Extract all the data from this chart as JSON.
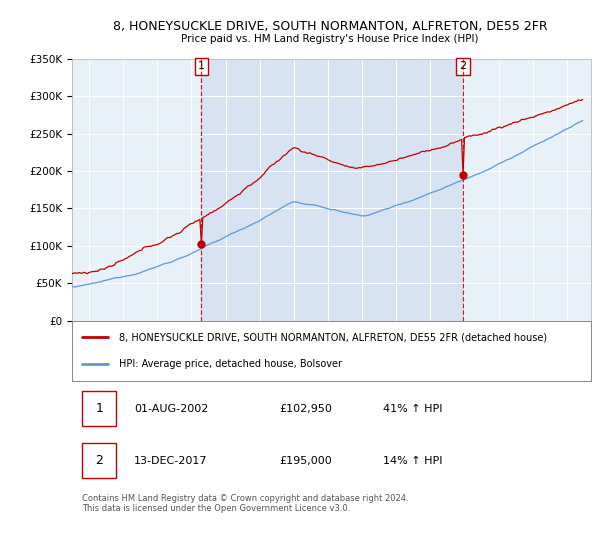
{
  "title": "8, HONEYSUCKLE DRIVE, SOUTH NORMANTON, ALFRETON, DE55 2FR",
  "subtitle": "Price paid vs. HM Land Registry's House Price Index (HPI)",
  "legend_line1": "8, HONEYSUCKLE DRIVE, SOUTH NORMANTON, ALFRETON, DE55 2FR (detached house)",
  "legend_line2": "HPI: Average price, detached house, Bolsover",
  "footnote": "Contains HM Land Registry data © Crown copyright and database right 2024.\nThis data is licensed under the Open Government Licence v3.0.",
  "purchase1_price": 102950,
  "purchase2_price": 195000,
  "hpi_color": "#5b9bd5",
  "price_color": "#c00000",
  "vline_color": "#c00000",
  "shade_color": "#ddeeff",
  "ylim_min": 0,
  "ylim_max": 350000,
  "background_color": "#ffffff",
  "chart_bg": "#e8f0f8"
}
